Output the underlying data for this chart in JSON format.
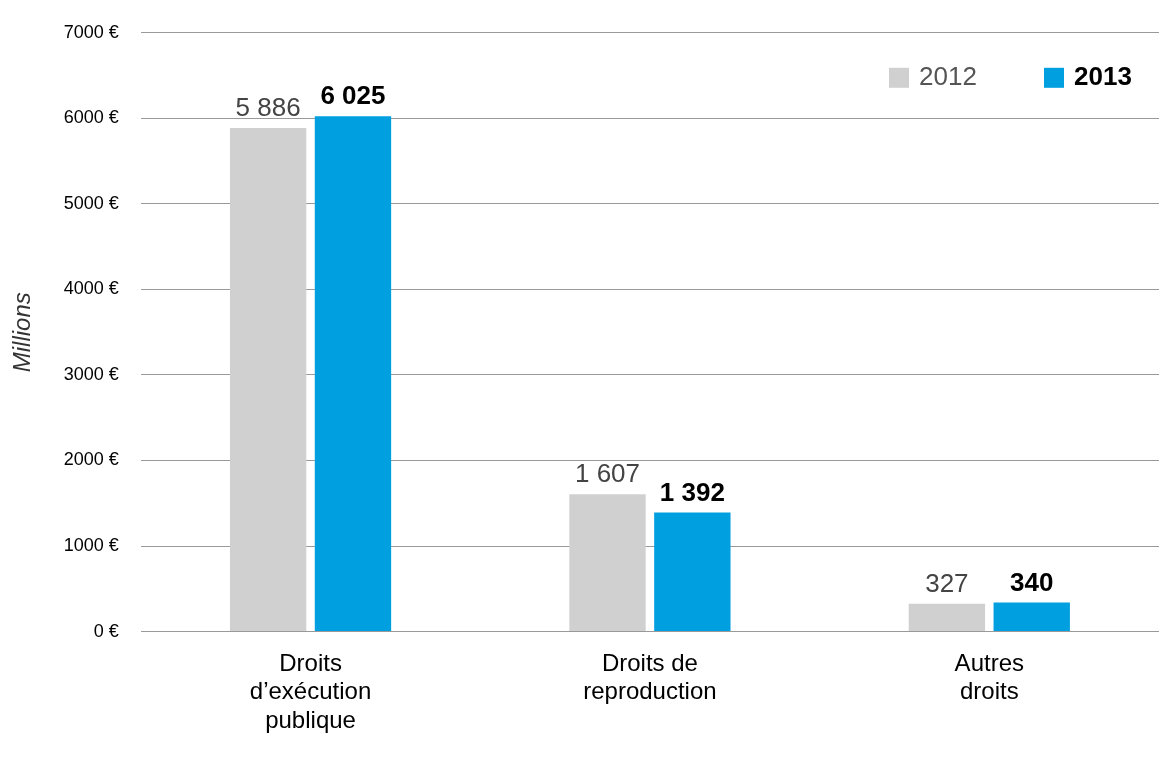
{
  "chart_data": {
    "type": "bar",
    "ylabel": "Millions",
    "categories": [
      "Droits d’exécution publique",
      "Droits de reproduction",
      "Autres droits"
    ],
    "series": [
      {
        "name": "2012",
        "color": "#d0d0d0",
        "values": [
          5886,
          1607,
          327
        ],
        "value_labels": [
          "5 886",
          "1 607",
          "327"
        ]
      },
      {
        "name": "2013",
        "color": "#009fe0",
        "values": [
          6025,
          1392,
          340
        ],
        "value_labels": [
          "6 025",
          "1 392",
          "340"
        ]
      }
    ],
    "ylim": [
      0,
      7000
    ],
    "yticks": [
      {
        "value": 0,
        "label": "0 €"
      },
      {
        "value": 1000,
        "label": "1000 €"
      },
      {
        "value": 2000,
        "label": "2000 €"
      },
      {
        "value": 3000,
        "label": "3000 €"
      },
      {
        "value": 4000,
        "label": "4000 €"
      },
      {
        "value": 5000,
        "label": "5000 €"
      },
      {
        "value": 6000,
        "label": "6000 €"
      },
      {
        "value": 7000,
        "label": "7000 €"
      }
    ],
    "grid": "y",
    "legend": "top right"
  }
}
